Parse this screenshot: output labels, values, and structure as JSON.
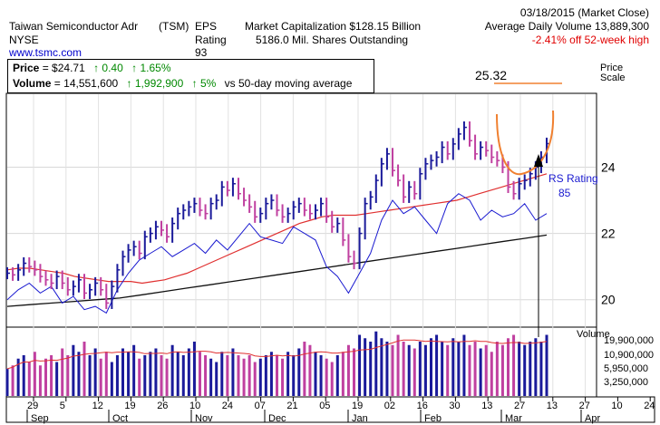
{
  "header": {
    "company": "Taiwan Semiconductor Adr",
    "ticker": "(TSM)",
    "exchange": "NYSE",
    "website": "www.tsmc.com",
    "eps_label": "EPS",
    "rating_label": "Rating",
    "rating_value": "93",
    "market_cap": "Market Capitalization $128.15 Billion",
    "shares": "5186.0 Mil. Shares Outstanding",
    "date": "03/18/2015 (Market Close)",
    "avg_volume": "Average Daily Volume 13,889,300",
    "off_high": "-2.41% off 52-week high"
  },
  "infobox": {
    "price_label": "Price",
    "price_value": "= $24.71",
    "price_change": "↑ 0.40",
    "price_change_pct": "↑ 1.65%",
    "volume_label": "Volume",
    "volume_value": "= 14,551,600",
    "volume_change": "↑ 1,992,900",
    "volume_change_pct": "↑ 5%",
    "volume_note": "vs 50-day moving average"
  },
  "chart_data": {
    "type": "line",
    "price_scale_label": "Price Scale",
    "volume_label": "Volume",
    "rs_label": "RS Rating",
    "rs_value": "85",
    "high_label": "25.32",
    "y_ticks": [
      "24",
      "22",
      "20"
    ],
    "volume_ticks": [
      "19,900,000",
      "10,900,000",
      "5,950,000",
      "3,250,000"
    ],
    "x_day_ticks": [
      "29",
      "5",
      "12",
      "19",
      "26",
      "10",
      "24",
      "07",
      "21",
      "05",
      "19",
      "02",
      "16",
      "30",
      "13",
      "27",
      "13",
      "27",
      "10",
      "24"
    ],
    "x_month_ticks": [
      "Sep",
      "Oct",
      "Nov",
      "Dec",
      "Jan",
      "Feb",
      "Mar",
      "Apr"
    ],
    "ylim": [
      19.2,
      26.2
    ],
    "price": [
      20.8,
      20.75,
      20.9,
      21.1,
      21.0,
      20.9,
      20.7,
      20.6,
      20.5,
      20.7,
      20.5,
      20.3,
      20.4,
      20.6,
      20.2,
      20.3,
      20.5,
      20.3,
      19.9,
      20.4,
      20.9,
      21.3,
      21.5,
      21.6,
      21.4,
      21.9,
      22.0,
      22.2,
      22.1,
      21.9,
      22.3,
      22.6,
      22.7,
      22.8,
      22.9,
      22.7,
      22.6,
      22.9,
      23.0,
      23.4,
      23.3,
      23.5,
      23.2,
      23.0,
      22.8,
      22.5,
      22.6,
      22.9,
      23.0,
      22.7,
      22.5,
      22.6,
      22.8,
      22.9,
      22.7,
      22.6,
      22.7,
      22.9,
      22.5,
      22.2,
      22.3,
      21.8,
      21.3,
      21.1,
      22.0,
      22.9,
      23.1,
      23.6,
      24.1,
      24.4,
      23.9,
      23.6,
      23.1,
      23.4,
      23.2,
      23.8,
      24.1,
      24.2,
      24.3,
      24.6,
      24.4,
      24.7,
      25.0,
      25.2,
      24.8,
      24.4,
      24.6,
      24.5,
      24.3,
      24.2,
      24.0,
      23.4,
      23.2,
      23.5,
      23.6,
      23.8,
      24.0,
      24.3,
      24.71
    ],
    "ma50": [
      20.9,
      20.95,
      20.95,
      20.9,
      20.85,
      20.8,
      20.7,
      20.65,
      20.6,
      20.55,
      20.55,
      20.55,
      20.5,
      20.55,
      20.6,
      20.7,
      20.8,
      20.95,
      21.1,
      21.25,
      21.4,
      21.55,
      21.7,
      21.85,
      22.0,
      22.15,
      22.3,
      22.4,
      22.5,
      22.55,
      22.55,
      22.55,
      22.6,
      22.65,
      22.7,
      22.75,
      22.8,
      22.85,
      22.9,
      22.95,
      23.0,
      23.1,
      23.2,
      23.3,
      23.4,
      23.5,
      23.6,
      23.7,
      23.8
    ],
    "ma200": [
      19.8,
      19.85,
      19.9,
      19.95,
      20.0,
      20.05,
      20.15,
      20.25,
      20.35,
      20.45,
      20.55,
      20.65,
      20.75,
      20.85,
      20.95,
      21.05,
      21.15,
      21.25,
      21.35,
      21.45,
      21.55,
      21.65,
      21.75,
      21.85,
      21.95
    ],
    "rs_line": [
      20.0,
      20.3,
      20.5,
      20.2,
      20.4,
      19.9,
      20.1,
      19.7,
      19.8,
      19.6,
      20.3,
      20.8,
      21.2,
      21.4,
      21.6,
      21.3,
      21.5,
      21.7,
      21.4,
      21.8,
      21.5,
      21.9,
      22.3,
      21.9,
      21.8,
      21.7,
      22.2,
      22.0,
      21.8,
      21.0,
      20.7,
      20.2,
      20.8,
      21.4,
      22.4,
      23.0,
      22.6,
      22.8,
      22.4,
      22.0,
      22.9,
      23.2,
      23.0,
      22.4,
      22.7,
      22.5,
      22.6,
      22.9,
      22.4,
      22.6
    ],
    "volume": [
      8,
      9,
      11,
      12,
      10,
      13,
      9,
      11,
      12,
      10,
      14,
      12,
      15,
      13,
      16,
      12,
      14,
      11,
      13,
      10,
      12,
      14,
      13,
      15,
      11,
      12,
      13,
      14,
      12,
      11,
      15,
      13,
      12,
      14,
      16,
      13,
      12,
      11,
      10,
      13,
      12,
      14,
      12,
      11,
      12,
      10,
      11,
      12,
      13,
      12,
      11,
      13,
      12,
      14,
      16,
      15,
      13,
      12,
      11,
      10,
      12,
      13,
      15,
      14,
      18,
      17,
      16,
      19,
      17,
      16,
      15,
      18,
      16,
      15,
      14,
      16,
      15,
      17,
      18,
      16,
      15,
      17,
      16,
      18,
      15,
      16,
      14,
      15,
      13,
      16,
      15,
      17,
      18,
      16,
      15,
      16,
      17,
      16,
      18
    ]
  }
}
